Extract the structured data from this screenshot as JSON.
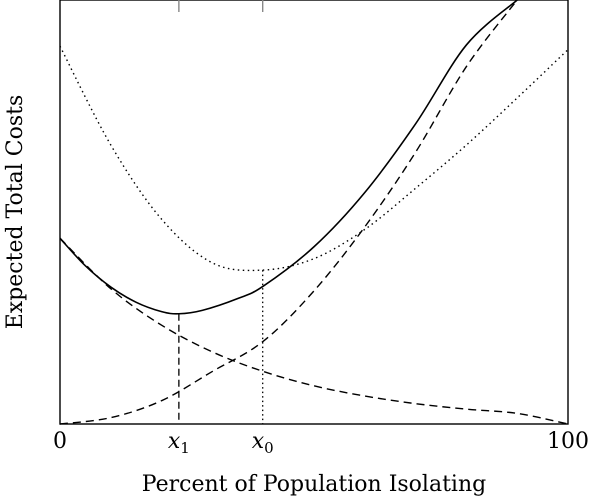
{
  "chart_data": {
    "type": "line",
    "xlabel": "Percent of Population Isolating",
    "ylabel": "Expected Total Costs",
    "xlim": [
      0,
      100
    ],
    "ylim": [
      0,
      100
    ],
    "grid": false,
    "x_ticks": [
      {
        "value": 0,
        "label": "0"
      },
      {
        "value": 100,
        "label": "100"
      }
    ],
    "markers": [
      {
        "name": "x1",
        "base": "x",
        "sub": "1",
        "value": 23.4
      },
      {
        "name": "x0",
        "base": "x",
        "sub": "0",
        "value": 39.9
      }
    ],
    "series": [
      {
        "key": "total",
        "style": "solid",
        "x": [
          0,
          5,
          10,
          15,
          20,
          23.4,
          28,
          35,
          40,
          50,
          60,
          70,
          80,
          90
        ],
        "y": [
          43.8,
          37.3,
          32.3,
          28.7,
          26.5,
          26.0,
          26.8,
          29.6,
          32.5,
          41.8,
          54.6,
          70.8,
          89.4,
          100
        ]
      },
      {
        "key": "decreasing",
        "style": "dashed",
        "x": [
          0,
          10,
          20,
          30,
          40,
          50,
          60,
          70,
          80,
          90,
          100
        ],
        "y": [
          43.8,
          31.9,
          23.3,
          17.0,
          12.4,
          9.0,
          6.6,
          4.8,
          3.5,
          2.5,
          0.0
        ]
      },
      {
        "key": "increasing",
        "style": "dashed",
        "x": [
          0,
          10,
          20,
          30,
          40,
          50,
          60,
          70,
          80,
          90
        ],
        "y": [
          0.0,
          1.5,
          5.5,
          12.4,
          19.5,
          31.4,
          46.5,
          64.1,
          84.3,
          100
        ]
      },
      {
        "key": "shifted",
        "style": "dotted",
        "x": [
          0,
          10,
          20,
          30,
          39.9,
          50,
          60,
          70,
          80,
          90,
          100
        ],
        "y": [
          89.1,
          65.8,
          48.3,
          38.0,
          36.3,
          39.0,
          45.9,
          55.6,
          65.8,
          76.9,
          88.3
        ]
      }
    ]
  }
}
